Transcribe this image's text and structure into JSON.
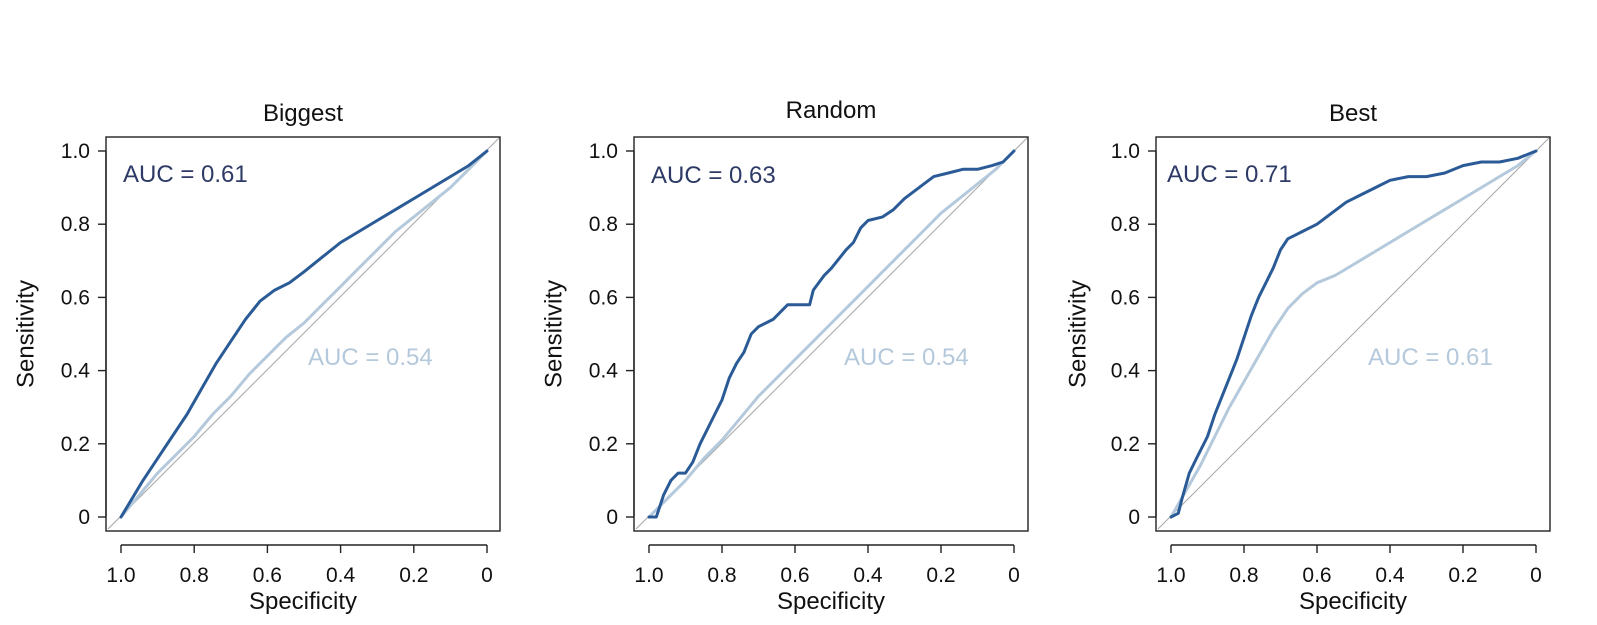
{
  "colors": {
    "dark_series": "#2b5b97",
    "light_series": "#b5c9dc",
    "dark_auc_text": "#2e3a66",
    "light_auc_text": "#b5c9dc",
    "diagonal": "#a8a8a8"
  },
  "chart_data": [
    {
      "type": "line",
      "title": "Biggest",
      "xlabel": "Specificity",
      "ylabel": "Sensitivity",
      "xlim": [
        1.0,
        0
      ],
      "ylim": [
        0,
        1.0
      ],
      "x_ticks": [
        "1.0",
        "0.8",
        "0.6",
        "0.4",
        "0.2",
        "0"
      ],
      "y_ticks": [
        "0",
        "0.2",
        "0.4",
        "0.6",
        "0.8",
        "1.0"
      ],
      "auc_labels": [
        {
          "text": "AUC =  0.61",
          "series": "dark"
        },
        {
          "text": "AUC =  0.54",
          "series": "light"
        }
      ],
      "series": [
        {
          "key": "dark",
          "x": [
            1.0,
            0.97,
            0.94,
            0.9,
            0.86,
            0.82,
            0.78,
            0.74,
            0.7,
            0.66,
            0.62,
            0.58,
            0.54,
            0.5,
            0.45,
            0.4,
            0.35,
            0.3,
            0.25,
            0.2,
            0.15,
            0.1,
            0.05,
            0.0
          ],
          "y": [
            0.0,
            0.05,
            0.1,
            0.16,
            0.22,
            0.28,
            0.35,
            0.42,
            0.48,
            0.54,
            0.59,
            0.62,
            0.64,
            0.67,
            0.71,
            0.75,
            0.78,
            0.81,
            0.84,
            0.87,
            0.9,
            0.93,
            0.96,
            1.0
          ]
        },
        {
          "key": "light",
          "x": [
            1.0,
            0.95,
            0.9,
            0.85,
            0.8,
            0.75,
            0.7,
            0.65,
            0.6,
            0.55,
            0.5,
            0.45,
            0.4,
            0.35,
            0.3,
            0.25,
            0.2,
            0.15,
            0.1,
            0.05,
            0.0
          ],
          "y": [
            0.0,
            0.06,
            0.12,
            0.17,
            0.22,
            0.28,
            0.33,
            0.39,
            0.44,
            0.49,
            0.53,
            0.58,
            0.63,
            0.68,
            0.73,
            0.78,
            0.82,
            0.86,
            0.9,
            0.95,
            1.0
          ]
        }
      ]
    },
    {
      "type": "line",
      "title": "Random",
      "xlabel": "Specificity",
      "ylabel": "Sensitivity",
      "xlim": [
        1.0,
        0
      ],
      "ylim": [
        0,
        1.0
      ],
      "x_ticks": [
        "1.0",
        "0.8",
        "0.6",
        "0.4",
        "0.2",
        "0"
      ],
      "y_ticks": [
        "0",
        "0.2",
        "0.4",
        "0.6",
        "0.8",
        "1.0"
      ],
      "auc_labels": [
        {
          "text": "AUC =  0.63",
          "series": "dark"
        },
        {
          "text": "AUC =  0.54",
          "series": "light"
        }
      ],
      "series": [
        {
          "key": "dark",
          "x": [
            1.0,
            0.98,
            0.96,
            0.94,
            0.92,
            0.9,
            0.88,
            0.86,
            0.84,
            0.82,
            0.8,
            0.78,
            0.76,
            0.74,
            0.72,
            0.7,
            0.66,
            0.62,
            0.6,
            0.56,
            0.55,
            0.52,
            0.5,
            0.46,
            0.44,
            0.42,
            0.4,
            0.36,
            0.33,
            0.3,
            0.26,
            0.22,
            0.18,
            0.14,
            0.1,
            0.06,
            0.03,
            0.0
          ],
          "y": [
            0.0,
            0.0,
            0.06,
            0.1,
            0.12,
            0.12,
            0.15,
            0.2,
            0.24,
            0.28,
            0.32,
            0.38,
            0.42,
            0.45,
            0.5,
            0.52,
            0.54,
            0.58,
            0.58,
            0.58,
            0.62,
            0.66,
            0.68,
            0.73,
            0.75,
            0.79,
            0.81,
            0.82,
            0.84,
            0.87,
            0.9,
            0.93,
            0.94,
            0.95,
            0.95,
            0.96,
            0.97,
            1.0
          ]
        },
        {
          "key": "light",
          "x": [
            1.0,
            0.95,
            0.9,
            0.85,
            0.8,
            0.75,
            0.7,
            0.65,
            0.6,
            0.55,
            0.5,
            0.45,
            0.4,
            0.35,
            0.3,
            0.25,
            0.2,
            0.15,
            0.1,
            0.05,
            0.0
          ],
          "y": [
            0.0,
            0.05,
            0.1,
            0.16,
            0.21,
            0.27,
            0.33,
            0.38,
            0.43,
            0.48,
            0.53,
            0.58,
            0.63,
            0.68,
            0.73,
            0.78,
            0.83,
            0.87,
            0.91,
            0.95,
            1.0
          ]
        }
      ]
    },
    {
      "type": "line",
      "title": "Best",
      "xlabel": "Specificity",
      "ylabel": "Sensitivity",
      "xlim": [
        1.0,
        0
      ],
      "ylim": [
        0,
        1.0
      ],
      "x_ticks": [
        "1.0",
        "0.8",
        "0.6",
        "0.4",
        "0.2",
        "0"
      ],
      "y_ticks": [
        "0",
        "0.2",
        "0.4",
        "0.6",
        "0.8",
        "1.0"
      ],
      "auc_labels": [
        {
          "text": "AUC =  0.71",
          "series": "dark"
        },
        {
          "text": "AUC =  0.61",
          "series": "light"
        }
      ],
      "series": [
        {
          "key": "dark",
          "x": [
            1.0,
            0.98,
            0.97,
            0.95,
            0.93,
            0.9,
            0.88,
            0.86,
            0.84,
            0.82,
            0.8,
            0.78,
            0.76,
            0.74,
            0.72,
            0.7,
            0.68,
            0.66,
            0.64,
            0.6,
            0.56,
            0.52,
            0.48,
            0.44,
            0.4,
            0.35,
            0.3,
            0.25,
            0.2,
            0.15,
            0.1,
            0.05,
            0.0
          ],
          "y": [
            0.0,
            0.01,
            0.05,
            0.12,
            0.16,
            0.22,
            0.28,
            0.33,
            0.38,
            0.43,
            0.49,
            0.55,
            0.6,
            0.64,
            0.68,
            0.73,
            0.76,
            0.77,
            0.78,
            0.8,
            0.83,
            0.86,
            0.88,
            0.9,
            0.92,
            0.93,
            0.93,
            0.94,
            0.96,
            0.97,
            0.97,
            0.98,
            1.0
          ]
        },
        {
          "key": "light",
          "x": [
            1.0,
            0.96,
            0.92,
            0.88,
            0.84,
            0.8,
            0.76,
            0.72,
            0.68,
            0.64,
            0.6,
            0.55,
            0.5,
            0.45,
            0.4,
            0.35,
            0.3,
            0.25,
            0.2,
            0.15,
            0.1,
            0.05,
            0.0
          ],
          "y": [
            0.0,
            0.07,
            0.14,
            0.22,
            0.3,
            0.37,
            0.44,
            0.51,
            0.57,
            0.61,
            0.64,
            0.66,
            0.69,
            0.72,
            0.75,
            0.78,
            0.81,
            0.84,
            0.87,
            0.9,
            0.93,
            0.96,
            1.0
          ]
        }
      ]
    }
  ]
}
